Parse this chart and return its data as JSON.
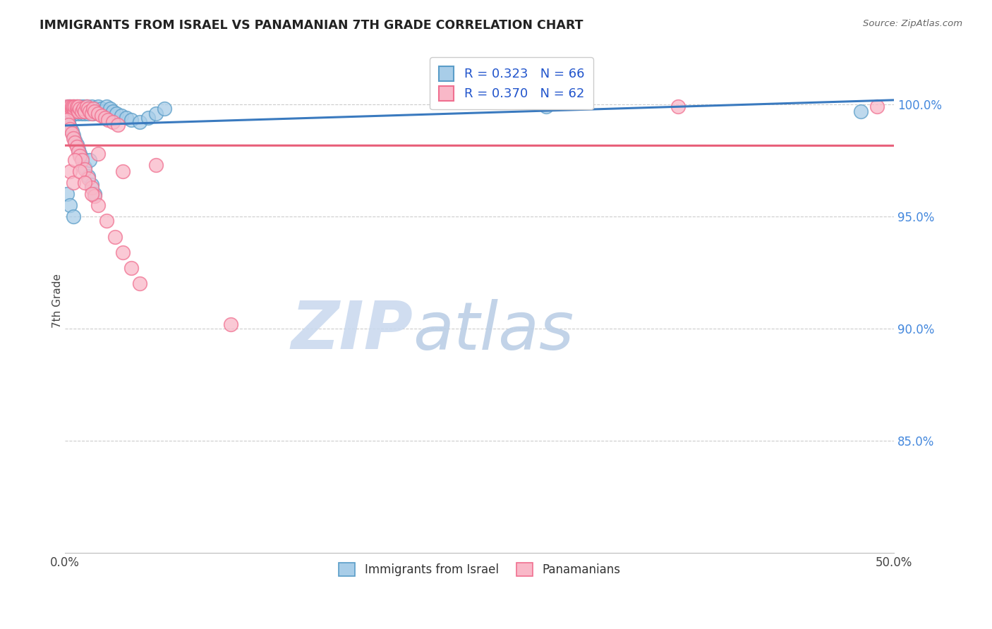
{
  "title": "IMMIGRANTS FROM ISRAEL VS PANAMANIAN 7TH GRADE CORRELATION CHART",
  "source": "Source: ZipAtlas.com",
  "ylabel": "7th Grade",
  "ylabel_right_labels": [
    "100.0%",
    "95.0%",
    "90.0%",
    "85.0%"
  ],
  "ylabel_right_values": [
    1.0,
    0.95,
    0.9,
    0.85
  ],
  "xmin": 0.0,
  "xmax": 0.5,
  "ymin": 0.8,
  "ymax": 1.025,
  "legend_label1": "Immigrants from Israel",
  "legend_label2": "Panamanians",
  "blue_fill": "#a8cde8",
  "pink_fill": "#f9b8c8",
  "blue_edge": "#5a9dc8",
  "pink_edge": "#f07090",
  "blue_line_color": "#3a7abf",
  "pink_line_color": "#e8607a",
  "watermark_color": "#dde8f5",
  "israel_x": [
    0.001,
    0.002,
    0.003,
    0.003,
    0.004,
    0.004,
    0.005,
    0.005,
    0.006,
    0.006,
    0.007,
    0.007,
    0.008,
    0.008,
    0.009,
    0.009,
    0.01,
    0.01,
    0.011,
    0.011,
    0.012,
    0.012,
    0.013,
    0.013,
    0.014,
    0.015,
    0.015,
    0.016,
    0.017,
    0.018,
    0.019,
    0.02,
    0.021,
    0.022,
    0.023,
    0.025,
    0.027,
    0.029,
    0.031,
    0.034,
    0.037,
    0.04,
    0.045,
    0.05,
    0.055,
    0.06,
    0.001,
    0.002,
    0.003,
    0.004,
    0.005,
    0.006,
    0.007,
    0.008,
    0.009,
    0.01,
    0.012,
    0.014,
    0.016,
    0.018,
    0.001,
    0.003,
    0.005,
    0.015,
    0.29,
    0.48
  ],
  "israel_y": [
    0.998,
    0.999,
    0.997,
    0.999,
    0.996,
    0.998,
    0.997,
    0.999,
    0.996,
    0.998,
    0.997,
    0.999,
    0.996,
    0.998,
    0.997,
    0.999,
    0.996,
    0.998,
    0.997,
    0.999,
    0.996,
    0.998,
    0.997,
    0.999,
    0.996,
    0.998,
    0.997,
    0.999,
    0.996,
    0.998,
    0.997,
    0.999,
    0.996,
    0.998,
    0.997,
    0.999,
    0.998,
    0.997,
    0.996,
    0.995,
    0.994,
    0.993,
    0.992,
    0.994,
    0.996,
    0.998,
    0.994,
    0.992,
    0.99,
    0.988,
    0.986,
    0.984,
    0.982,
    0.98,
    0.978,
    0.976,
    0.972,
    0.968,
    0.964,
    0.96,
    0.96,
    0.955,
    0.95,
    0.975,
    0.999,
    0.997
  ],
  "panama_x": [
    0.001,
    0.002,
    0.003,
    0.003,
    0.004,
    0.004,
    0.005,
    0.005,
    0.006,
    0.006,
    0.007,
    0.007,
    0.008,
    0.008,
    0.009,
    0.01,
    0.011,
    0.012,
    0.013,
    0.014,
    0.015,
    0.016,
    0.017,
    0.018,
    0.02,
    0.022,
    0.024,
    0.026,
    0.029,
    0.032,
    0.001,
    0.002,
    0.003,
    0.004,
    0.005,
    0.006,
    0.007,
    0.008,
    0.009,
    0.01,
    0.012,
    0.014,
    0.016,
    0.018,
    0.02,
    0.025,
    0.03,
    0.035,
    0.04,
    0.045,
    0.003,
    0.005,
    0.006,
    0.009,
    0.012,
    0.016,
    0.02,
    0.035,
    0.1,
    0.49,
    0.37,
    0.055
  ],
  "panama_y": [
    0.999,
    0.998,
    0.997,
    0.999,
    0.998,
    0.999,
    0.998,
    0.999,
    0.997,
    0.999,
    0.998,
    0.999,
    0.997,
    0.999,
    0.998,
    0.997,
    0.998,
    0.997,
    0.999,
    0.998,
    0.997,
    0.996,
    0.998,
    0.997,
    0.996,
    0.995,
    0.994,
    0.993,
    0.992,
    0.991,
    0.993,
    0.991,
    0.989,
    0.987,
    0.985,
    0.983,
    0.981,
    0.979,
    0.977,
    0.975,
    0.971,
    0.967,
    0.963,
    0.959,
    0.955,
    0.948,
    0.941,
    0.934,
    0.927,
    0.92,
    0.97,
    0.965,
    0.975,
    0.97,
    0.965,
    0.96,
    0.978,
    0.97,
    0.902,
    0.999,
    0.999,
    0.973
  ]
}
